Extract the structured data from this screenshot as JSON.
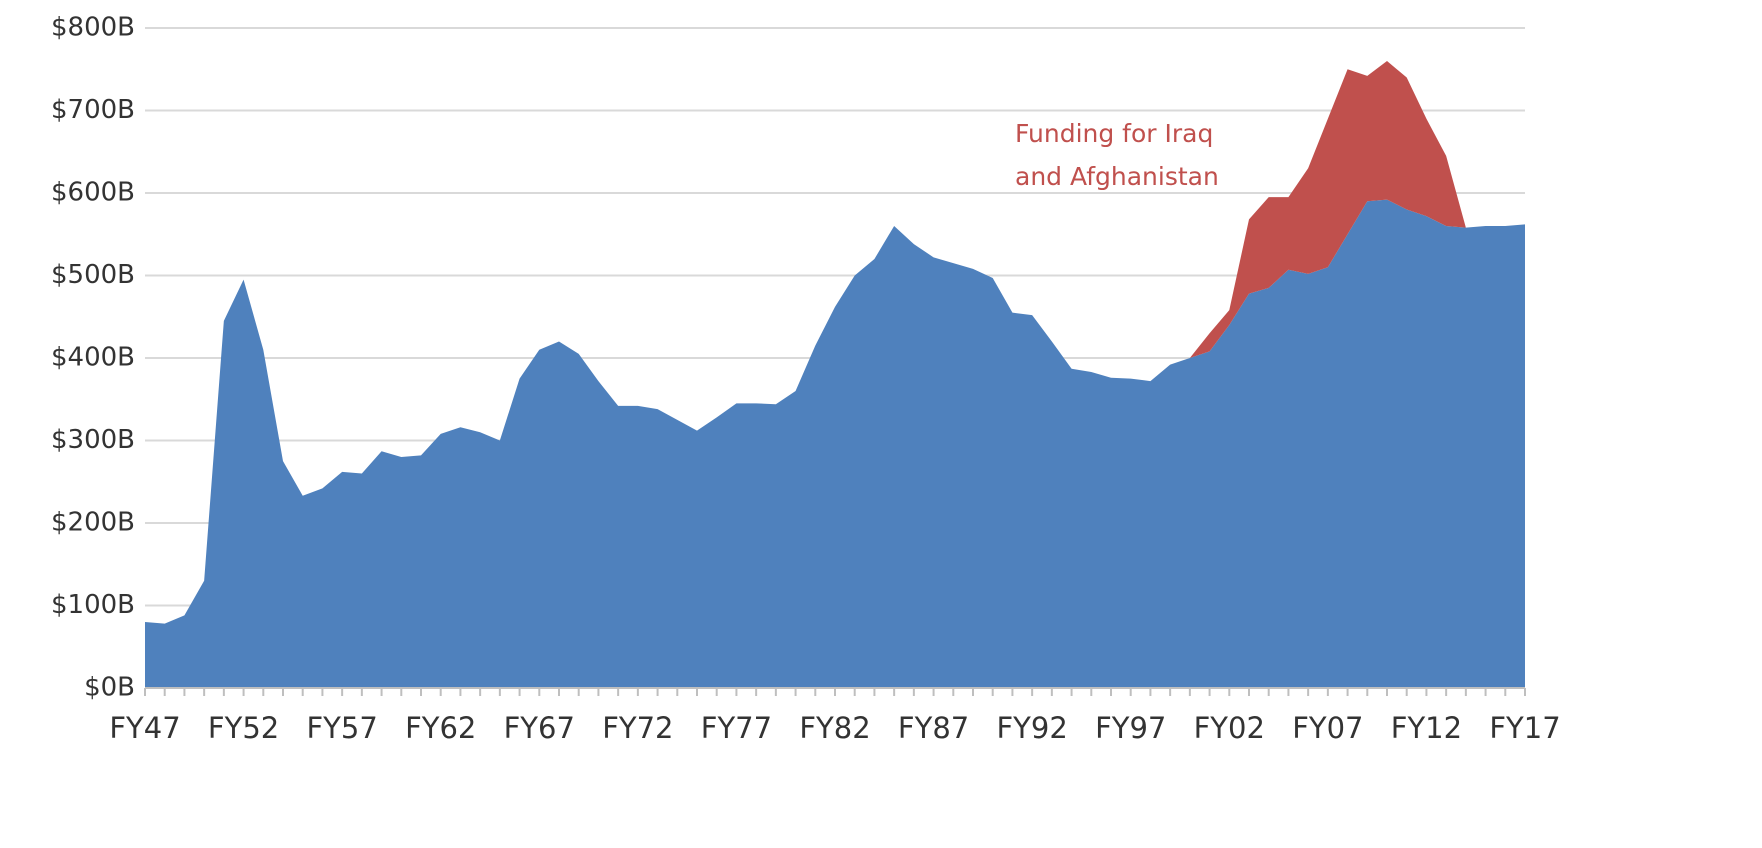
{
  "chart_data": {
    "type": "stacked_area",
    "categories": [
      "FY47",
      null,
      null,
      null,
      null,
      "FY52",
      null,
      null,
      null,
      null,
      "FY57",
      null,
      null,
      null,
      null,
      "FY62",
      null,
      null,
      null,
      null,
      "FY67",
      null,
      null,
      null,
      null,
      "FY72",
      null,
      null,
      null,
      null,
      "FY77",
      null,
      null,
      null,
      null,
      "FY82",
      null,
      null,
      null,
      null,
      "FY87",
      null,
      null,
      null,
      null,
      "FY92",
      null,
      null,
      null,
      null,
      "FY97",
      null,
      null,
      null,
      null,
      "FY02",
      null,
      null,
      null,
      null,
      "FY07",
      null,
      null,
      null,
      null,
      "FY12",
      null,
      null,
      null,
      null,
      "FY17"
    ],
    "series": [
      {
        "color": "#4f81bd",
        "values": [
          80,
          78,
          88,
          130,
          445,
          495,
          410,
          275,
          233,
          242,
          262,
          260,
          287,
          280,
          282,
          308,
          316,
          310,
          300,
          375,
          410,
          420,
          405,
          372,
          342,
          342,
          338,
          325,
          312,
          328,
          345,
          345,
          344,
          360,
          415,
          462,
          500,
          520,
          560,
          538,
          522,
          515,
          508,
          497,
          455,
          452,
          420,
          387,
          383,
          376,
          375,
          372,
          392,
          400,
          408,
          440,
          478,
          485,
          507,
          502,
          510,
          550,
          590,
          592,
          580,
          572,
          560,
          558,
          560,
          560,
          562
        ]
      },
      {
        "color": "#c0504d",
        "values": [
          0,
          0,
          0,
          0,
          0,
          0,
          0,
          0,
          0,
          0,
          0,
          0,
          0,
          0,
          0,
          0,
          0,
          0,
          0,
          0,
          0,
          0,
          0,
          0,
          0,
          0,
          0,
          0,
          0,
          0,
          0,
          0,
          0,
          0,
          0,
          0,
          0,
          0,
          0,
          0,
          0,
          0,
          0,
          0,
          0,
          0,
          0,
          0,
          0,
          0,
          0,
          0,
          0,
          0,
          22,
          18,
          90,
          110,
          88,
          128,
          180,
          200,
          152,
          168,
          160,
          118,
          85,
          0,
          0,
          0,
          0
        ]
      }
    ],
    "annotation": [
      "Funding for Iraq",
      "and Afghanistan"
    ],
    "ylim": [
      0,
      800
    ],
    "yticks": [
      {
        "value": 0,
        "label": "$0B"
      },
      {
        "value": 100,
        "label": "$100B"
      },
      {
        "value": 200,
        "label": "$200B"
      },
      {
        "value": 300,
        "label": "$300B"
      },
      {
        "value": 400,
        "label": "$400B"
      },
      {
        "value": 500,
        "label": "$500B"
      },
      {
        "value": 600,
        "label": "$600B"
      },
      {
        "value": 700,
        "label": "$700B"
      },
      {
        "value": 800,
        "label": "$800B"
      }
    ],
    "grid": true
  }
}
